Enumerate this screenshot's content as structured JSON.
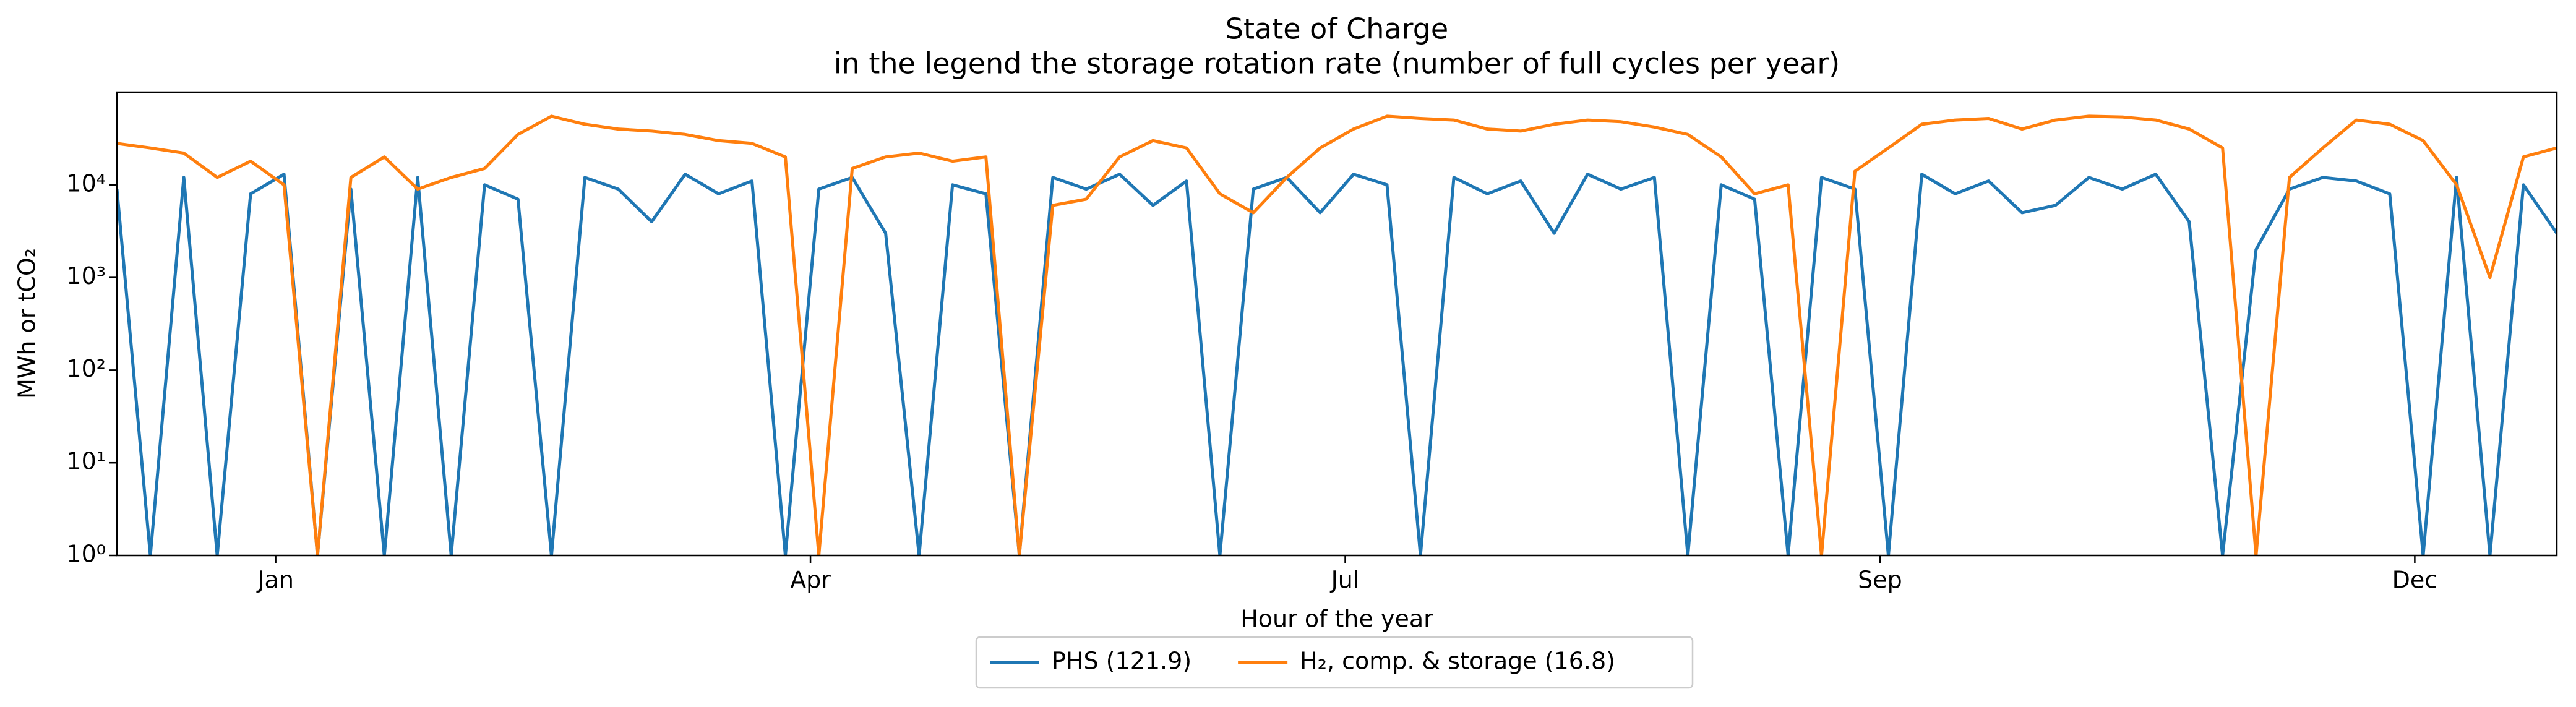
{
  "chart_data": {
    "type": "line",
    "title": "State of Charge",
    "subtitle": "in the legend the storage rotation rate (number of full cycles per year)",
    "x_label": "Hour of the year",
    "y_label": "MWh or tCO₂",
    "log_y": true,
    "legend": "lower center",
    "x": [
      0,
      120,
      240,
      360,
      480,
      600,
      720,
      840,
      960,
      1080,
      1200,
      1320,
      1440,
      1560,
      1680,
      1800,
      1920,
      2040,
      2160,
      2280,
      2400,
      2520,
      2640,
      2760,
      2880,
      3000,
      3120,
      3240,
      3360,
      3480,
      3600,
      3720,
      3840,
      3960,
      4080,
      4200,
      4320,
      4440,
      4560,
      4680,
      4800,
      4920,
      5040,
      5160,
      5280,
      5400,
      5520,
      5640,
      5760,
      5880,
      6000,
      6120,
      6240,
      6360,
      6480,
      6600,
      6720,
      6840,
      6960,
      7080,
      7200,
      7320,
      7440,
      7560,
      7680,
      7800,
      7920,
      8040,
      8160,
      8280,
      8400,
      8520,
      8640,
      8760
    ],
    "xlim": [
      0,
      8760
    ],
    "xticks": [
      {
        "value": 570,
        "label": "Jan"
      },
      {
        "value": 2490,
        "label": "Apr"
      },
      {
        "value": 4410,
        "label": "Jul"
      },
      {
        "value": 6330,
        "label": "Sep"
      },
      {
        "value": 8250,
        "label": "Dec"
      }
    ],
    "ylim": [
      1,
      100000
    ],
    "yticks": [
      {
        "value": 1,
        "label": "10⁰"
      },
      {
        "value": 10,
        "label": "10¹"
      },
      {
        "value": 100,
        "label": "10²"
      },
      {
        "value": 1000,
        "label": "10³"
      },
      {
        "value": 10000,
        "label": "10⁴"
      }
    ],
    "series": [
      {
        "name": "PHS (121.9)",
        "color": "#1f77b4",
        "values": [
          9000,
          1,
          12000,
          1,
          8000,
          13000,
          1,
          9000,
          1,
          12000,
          1,
          10000,
          7000,
          1,
          12000,
          9000,
          4000,
          13000,
          8000,
          11000,
          1,
          9000,
          12000,
          3000,
          1,
          10000,
          8000,
          1,
          12000,
          9000,
          13000,
          6000,
          11000,
          1,
          9000,
          12000,
          5000,
          13000,
          10000,
          1,
          12000,
          8000,
          11000,
          3000,
          13000,
          9000,
          12000,
          1,
          10000,
          7000,
          1,
          12000,
          9000,
          1,
          13000,
          8000,
          11000,
          5000,
          6000,
          12000,
          9000,
          13000,
          4000,
          1,
          2000,
          9000,
          12000,
          11000,
          8000,
          1,
          12000,
          1,
          10000,
          3000
        ]
      },
      {
        "name": "H₂, comp. & storage (16.8)",
        "color": "#ff7f0e",
        "values": [
          28000,
          25000,
          22000,
          12000,
          18000,
          10000,
          1,
          12000,
          20000,
          9000,
          12000,
          15000,
          35000,
          55000,
          45000,
          40000,
          38000,
          35000,
          30000,
          28000,
          20000,
          1,
          15000,
          20000,
          22000,
          18000,
          20000,
          1,
          6000,
          7000,
          20000,
          30000,
          25000,
          8000,
          5000,
          12000,
          25000,
          40000,
          55000,
          52000,
          50000,
          40000,
          38000,
          45000,
          50000,
          48000,
          42000,
          35000,
          20000,
          8000,
          10000,
          1,
          14000,
          25000,
          45000,
          50000,
          52000,
          40000,
          50000,
          55000,
          54000,
          50000,
          40000,
          25000,
          1,
          12000,
          25000,
          50000,
          45000,
          30000,
          10000,
          1000,
          20000,
          25000
        ]
      }
    ]
  }
}
